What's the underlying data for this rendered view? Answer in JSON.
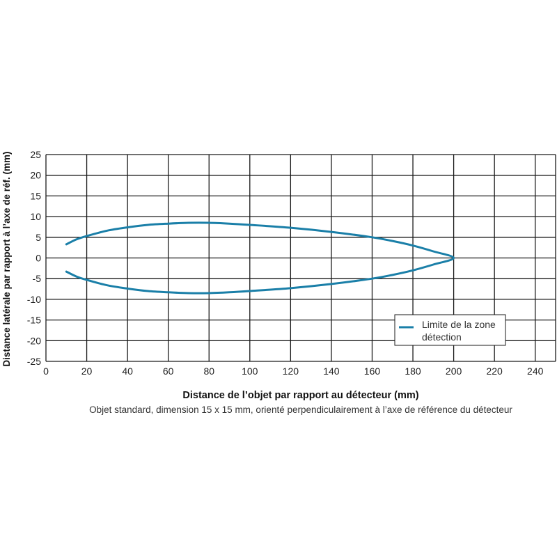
{
  "chart_data": {
    "type": "line",
    "xlabel": "Distance de l’objet par rapport au détecteur (mm)",
    "ylabel": "Distance latérale par rapport à l’axe de réf. (mm)",
    "caption": "Objet standard, dimension 15 x 15 mm, orienté perpendiculairement à l’axe de référence du détecteur",
    "xlim": [
      0,
      250
    ],
    "ylim": [
      -25,
      25
    ],
    "xticks": [
      0,
      20,
      40,
      60,
      80,
      100,
      120,
      140,
      160,
      180,
      200,
      220,
      240
    ],
    "yticks": [
      25,
      20,
      15,
      10,
      5,
      0,
      -5,
      -10,
      -15,
      -20,
      -25
    ],
    "grid": true,
    "legend": {
      "position": "bottom-right",
      "entries": [
        "Limite de la zone détection"
      ]
    },
    "colors": {
      "series": "#1a7fa8",
      "grid": "#1a1a1a"
    },
    "series": [
      {
        "name": "Limite de la zone détection",
        "points": [
          [
            10,
            3.3
          ],
          [
            15,
            4.5
          ],
          [
            20,
            5.3
          ],
          [
            30,
            6.6
          ],
          [
            40,
            7.4
          ],
          [
            50,
            8.0
          ],
          [
            60,
            8.3
          ],
          [
            70,
            8.5
          ],
          [
            80,
            8.5
          ],
          [
            90,
            8.3
          ],
          [
            100,
            8.0
          ],
          [
            120,
            7.3
          ],
          [
            140,
            6.3
          ],
          [
            160,
            5.0
          ],
          [
            170,
            4.1
          ],
          [
            180,
            3.0
          ],
          [
            190,
            1.6
          ],
          [
            200,
            0
          ],
          [
            190,
            -1.6
          ],
          [
            180,
            -3.0
          ],
          [
            170,
            -4.1
          ],
          [
            160,
            -5.0
          ],
          [
            140,
            -6.3
          ],
          [
            120,
            -7.3
          ],
          [
            100,
            -8.0
          ],
          [
            90,
            -8.3
          ],
          [
            80,
            -8.5
          ],
          [
            70,
            -8.5
          ],
          [
            60,
            -8.3
          ],
          [
            50,
            -8.0
          ],
          [
            40,
            -7.4
          ],
          [
            30,
            -6.6
          ],
          [
            20,
            -5.3
          ],
          [
            15,
            -4.5
          ],
          [
            10,
            -3.3
          ]
        ]
      }
    ]
  }
}
